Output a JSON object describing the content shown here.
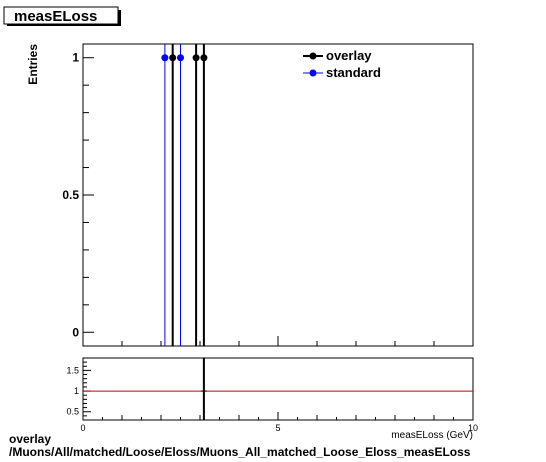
{
  "chart_data": [
    {
      "type": "scatter",
      "title": "measELoss",
      "ylabel": "Entries",
      "xlim": [
        0,
        10
      ],
      "ylim": [
        -0.05,
        1.05
      ],
      "yticks": [
        0,
        0.5,
        1
      ],
      "ytick_labels": [
        "0",
        "0.5",
        "1"
      ],
      "grid": false,
      "legend_position": "top-right",
      "series": [
        {
          "name": "overlay",
          "color": "#000000",
          "x": [
            2.3,
            2.9,
            3.1
          ],
          "y": [
            1,
            1,
            1
          ]
        },
        {
          "name": "standard",
          "color": "#0000ff",
          "x": [
            2.1,
            2.5
          ],
          "y": [
            1,
            1
          ]
        }
      ]
    },
    {
      "type": "line",
      "xlabel": "measELoss (GeV)",
      "xlim": [
        0,
        10
      ],
      "ylim": [
        0.3,
        1.8
      ],
      "xticks": [
        0,
        5,
        10
      ],
      "xtick_labels": [
        "0",
        "5",
        "10"
      ],
      "yticks": [
        0.5,
        1,
        1.5
      ],
      "ytick_labels": [
        "0.5",
        "1",
        "1.5"
      ],
      "reference_value": 1,
      "reference_color": "#cc0000",
      "series": [
        {
          "color": "#000000",
          "x": [
            3.1
          ],
          "y": [
            1
          ]
        }
      ]
    }
  ],
  "footer": {
    "line1": "overlay",
    "line2": "/Muons/All/matched/Loose/Eloss/Muons_All_matched_Loose_Eloss_measELoss"
  }
}
